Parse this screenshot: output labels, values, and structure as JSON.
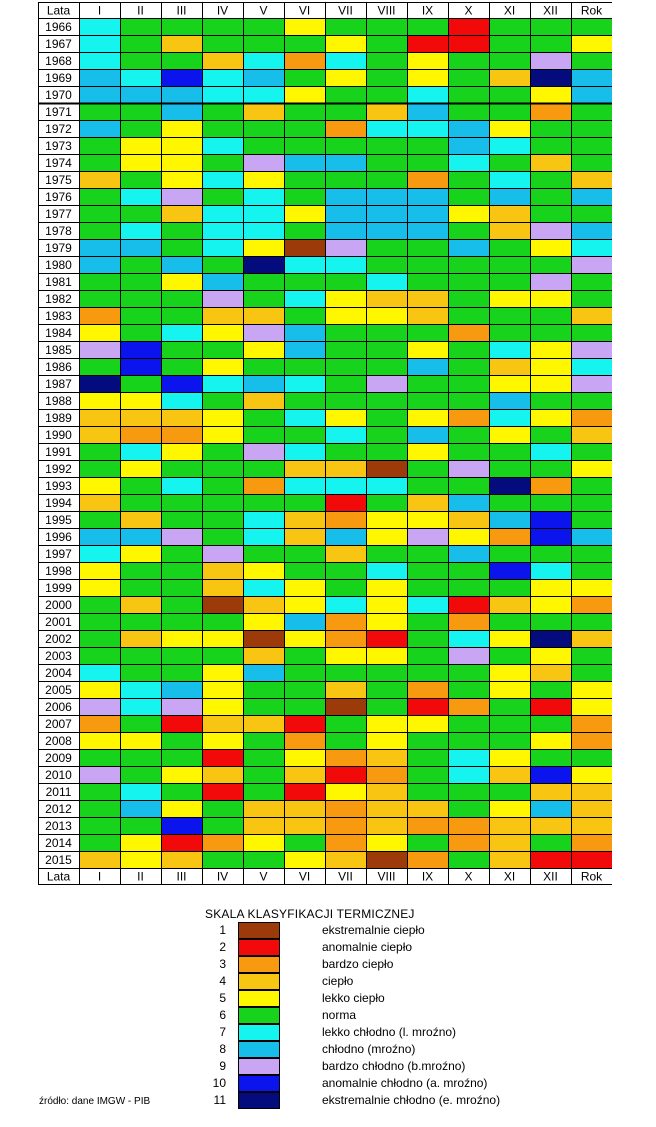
{
  "chart_data": {
    "type": "heatmap",
    "row_header": "Lata",
    "columns": [
      "I",
      "II",
      "III",
      "IV",
      "V",
      "VI",
      "VII",
      "VIII",
      "IX",
      "X",
      "XI",
      "XII",
      "Rok"
    ],
    "rows": [
      "1966",
      "1967",
      "1968",
      "1969",
      "1970",
      "1971",
      "1972",
      "1973",
      "1974",
      "1975",
      "1976",
      "1977",
      "1978",
      "1979",
      "1980",
      "1981",
      "1982",
      "1983",
      "1984",
      "1985",
      "1986",
      "1987",
      "1988",
      "1989",
      "1990",
      "1991",
      "1992",
      "1993",
      "1994",
      "1995",
      "1996",
      "1997",
      "1998",
      "1999",
      "2000",
      "2001",
      "2002",
      "2003",
      "2004",
      "2005",
      "2006",
      "2007",
      "2008",
      "2009",
      "2010",
      "2011",
      "2012",
      "2013",
      "2014",
      "2015"
    ],
    "values": [
      [
        7,
        6,
        6,
        6,
        6,
        5,
        6,
        6,
        6,
        2,
        6,
        6,
        6
      ],
      [
        7,
        6,
        4,
        6,
        6,
        6,
        5,
        6,
        2,
        2,
        6,
        6,
        5
      ],
      [
        7,
        6,
        6,
        4,
        7,
        3,
        7,
        6,
        5,
        6,
        6,
        9,
        6
      ],
      [
        8,
        7,
        10,
        7,
        8,
        6,
        5,
        6,
        5,
        6,
        4,
        11,
        8
      ],
      [
        8,
        8,
        8,
        7,
        7,
        5,
        6,
        6,
        7,
        6,
        6,
        5,
        8
      ],
      [
        6,
        6,
        8,
        6,
        4,
        6,
        6,
        4,
        8,
        6,
        6,
        3,
        6
      ],
      [
        8,
        6,
        5,
        6,
        6,
        6,
        3,
        7,
        7,
        8,
        5,
        6,
        6
      ],
      [
        6,
        5,
        5,
        7,
        6,
        6,
        6,
        6,
        6,
        8,
        7,
        6,
        6
      ],
      [
        6,
        5,
        5,
        6,
        9,
        8,
        8,
        6,
        6,
        7,
        6,
        4,
        6
      ],
      [
        4,
        6,
        5,
        7,
        5,
        6,
        6,
        6,
        3,
        6,
        7,
        6,
        4
      ],
      [
        6,
        7,
        9,
        6,
        7,
        6,
        8,
        8,
        8,
        6,
        8,
        6,
        8
      ],
      [
        6,
        6,
        4,
        7,
        7,
        5,
        8,
        8,
        8,
        5,
        4,
        6,
        6
      ],
      [
        6,
        7,
        6,
        7,
        7,
        6,
        8,
        8,
        8,
        6,
        4,
        9,
        8
      ],
      [
        8,
        8,
        6,
        7,
        5,
        1,
        9,
        6,
        6,
        8,
        6,
        5,
        7
      ],
      [
        8,
        6,
        8,
        6,
        11,
        7,
        7,
        6,
        6,
        6,
        6,
        6,
        9
      ],
      [
        6,
        6,
        5,
        8,
        6,
        6,
        6,
        7,
        6,
        6,
        6,
        9,
        6
      ],
      [
        6,
        6,
        6,
        9,
        6,
        7,
        5,
        4,
        4,
        6,
        5,
        5,
        6
      ],
      [
        3,
        6,
        6,
        4,
        4,
        6,
        5,
        5,
        4,
        6,
        6,
        6,
        4
      ],
      [
        5,
        6,
        7,
        5,
        9,
        8,
        6,
        6,
        6,
        3,
        6,
        6,
        6
      ],
      [
        9,
        10,
        6,
        6,
        5,
        8,
        6,
        6,
        5,
        6,
        7,
        5,
        9
      ],
      [
        6,
        10,
        6,
        5,
        6,
        6,
        6,
        6,
        8,
        6,
        4,
        5,
        7
      ],
      [
        11,
        6,
        10,
        7,
        8,
        7,
        6,
        9,
        6,
        6,
        5,
        5,
        9
      ],
      [
        5,
        5,
        7,
        6,
        4,
        6,
        6,
        6,
        6,
        6,
        8,
        6,
        6
      ],
      [
        4,
        4,
        4,
        5,
        6,
        7,
        5,
        6,
        5,
        3,
        7,
        5,
        3
      ],
      [
        4,
        3,
        3,
        5,
        6,
        6,
        7,
        6,
        8,
        6,
        5,
        6,
        4
      ],
      [
        6,
        7,
        5,
        6,
        9,
        7,
        6,
        6,
        5,
        6,
        6,
        7,
        6
      ],
      [
        6,
        5,
        6,
        6,
        6,
        4,
        4,
        1,
        6,
        9,
        6,
        6,
        5
      ],
      [
        5,
        6,
        7,
        6,
        3,
        7,
        7,
        7,
        6,
        6,
        11,
        3,
        6
      ],
      [
        4,
        6,
        6,
        6,
        6,
        6,
        2,
        6,
        4,
        8,
        6,
        6,
        6
      ],
      [
        6,
        4,
        6,
        6,
        7,
        4,
        3,
        5,
        5,
        4,
        8,
        10,
        6
      ],
      [
        8,
        8,
        9,
        6,
        7,
        4,
        8,
        5,
        9,
        5,
        3,
        10,
        8
      ],
      [
        7,
        5,
        6,
        9,
        6,
        6,
        4,
        6,
        6,
        8,
        6,
        6,
        6
      ],
      [
        5,
        6,
        6,
        4,
        5,
        6,
        6,
        7,
        6,
        6,
        10,
        7,
        6
      ],
      [
        5,
        6,
        6,
        4,
        7,
        5,
        6,
        5,
        6,
        6,
        6,
        5,
        5
      ],
      [
        6,
        4,
        6,
        1,
        4,
        5,
        7,
        5,
        7,
        2,
        4,
        5,
        3
      ],
      [
        6,
        6,
        6,
        6,
        5,
        8,
        3,
        5,
        6,
        3,
        6,
        6,
        6
      ],
      [
        6,
        4,
        5,
        5,
        1,
        5,
        3,
        2,
        6,
        7,
        5,
        11,
        4
      ],
      [
        6,
        6,
        6,
        6,
        4,
        6,
        5,
        5,
        6,
        9,
        6,
        5,
        6
      ],
      [
        7,
        6,
        6,
        5,
        8,
        6,
        6,
        6,
        6,
        6,
        5,
        4,
        6
      ],
      [
        5,
        7,
        8,
        5,
        6,
        6,
        4,
        6,
        3,
        6,
        5,
        6,
        5
      ],
      [
        9,
        7,
        9,
        5,
        6,
        6,
        1,
        6,
        2,
        3,
        6,
        2,
        5
      ],
      [
        3,
        6,
        2,
        4,
        4,
        2,
        6,
        5,
        5,
        6,
        6,
        6,
        3
      ],
      [
        5,
        5,
        6,
        5,
        6,
        3,
        6,
        5,
        6,
        6,
        6,
        5,
        3
      ],
      [
        6,
        6,
        6,
        2,
        6,
        5,
        3,
        4,
        6,
        7,
        5,
        6,
        6
      ],
      [
        9,
        6,
        5,
        4,
        6,
        4,
        2,
        3,
        6,
        7,
        4,
        10,
        5
      ],
      [
        6,
        7,
        6,
        2,
        6,
        2,
        5,
        4,
        6,
        6,
        6,
        4,
        4
      ],
      [
        6,
        8,
        5,
        6,
        4,
        4,
        3,
        4,
        4,
        6,
        5,
        8,
        4
      ],
      [
        6,
        6,
        10,
        6,
        4,
        4,
        3,
        4,
        3,
        3,
        4,
        4,
        4
      ],
      [
        6,
        5,
        2,
        3,
        5,
        6,
        3,
        5,
        6,
        3,
        4,
        6,
        3
      ],
      [
        4,
        5,
        4,
        6,
        6,
        5,
        4,
        1,
        3,
        6,
        4,
        2,
        2
      ]
    ],
    "legend_title": "SKALA KLASYFIKACJI TERMICZNEJ",
    "legend": [
      {
        "code": "1",
        "label": "ekstremalnie ciepło",
        "color": "#9C3A0A"
      },
      {
        "code": "2",
        "label": "anomalnie ciepło",
        "color": "#F20A0A"
      },
      {
        "code": "3",
        "label": "bardzo ciepło",
        "color": "#F79A10"
      },
      {
        "code": "4",
        "label": "ciepło",
        "color": "#F8C612"
      },
      {
        "code": "5",
        "label": "lekko ciepło",
        "color": "#FFF700"
      },
      {
        "code": "6",
        "label": "norma",
        "color": "#17D31B"
      },
      {
        "code": "7",
        "label": "lekko chłodno (l. mroźno)",
        "color": "#16F4F0"
      },
      {
        "code": "8",
        "label": "chłodno (mroźno)",
        "color": "#17BEEA"
      },
      {
        "code": "9",
        "label": "bardzo chłodno (b.mroźno)",
        "color": "#C9A6F4"
      },
      {
        "code": "10",
        "label": "anomalnie chłodno (a. mroźno)",
        "color": "#0C14EE"
      },
      {
        "code": "11",
        "label": "ekstremalnie chłodno (e. mroźno)",
        "color": "#040B7C"
      }
    ],
    "source": "źródło: dane IMGW - PIB"
  }
}
